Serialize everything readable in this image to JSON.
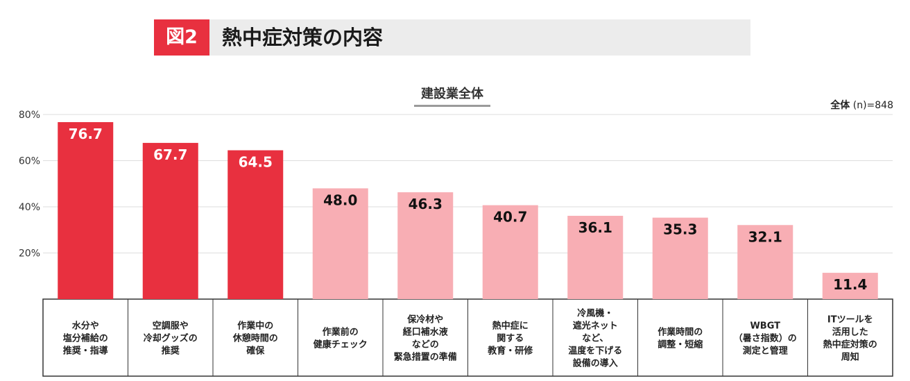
{
  "header": {
    "figure_label": "図2",
    "title": "熱中症対策の内容"
  },
  "sample_note": {
    "group": "全体",
    "n": "(n)=848"
  },
  "colors": {
    "accent": "#e8303f",
    "highlight_bar": "#e8303f",
    "normal_bar": "#f8aeb4"
  },
  "chart_data": {
    "type": "bar",
    "title": "建設業全体",
    "ylim": [
      0,
      80
    ],
    "yticks": [
      "20%",
      "40%",
      "60%",
      "80%"
    ],
    "grid": true,
    "categories": [
      [
        "水分や",
        "塩分補給の",
        "推奨・指導"
      ],
      [
        "空調服や",
        "冷却グッズの",
        "推奨"
      ],
      [
        "作業中の",
        "休憩時間の",
        "確保"
      ],
      [
        "作業前の",
        "健康チェック"
      ],
      [
        "保冷材や",
        "経口補水液",
        "などの",
        "緊急措置の準備"
      ],
      [
        "熱中症に",
        "関する",
        "教育・研修"
      ],
      [
        "冷風機・",
        "遮光ネット",
        "など、",
        "温度を下げる",
        "設備の導入"
      ],
      [
        "作業時間の",
        "調整・短縮"
      ],
      [
        "WBGT",
        "（暑さ指数）の",
        "測定と管理"
      ],
      [
        "ITツールを",
        "活用した",
        "熱中症対策の",
        "周知"
      ]
    ],
    "values": [
      76.7,
      67.7,
      64.5,
      48.0,
      46.3,
      40.7,
      36.1,
      35.3,
      32.1,
      11.4
    ],
    "value_labels": [
      "76.7",
      "67.7",
      "64.5",
      "48.0",
      "46.3",
      "40.7",
      "36.1",
      "35.3",
      "32.1",
      "11.4"
    ],
    "highlighted": [
      true,
      true,
      true,
      false,
      false,
      false,
      false,
      false,
      false,
      false
    ]
  }
}
